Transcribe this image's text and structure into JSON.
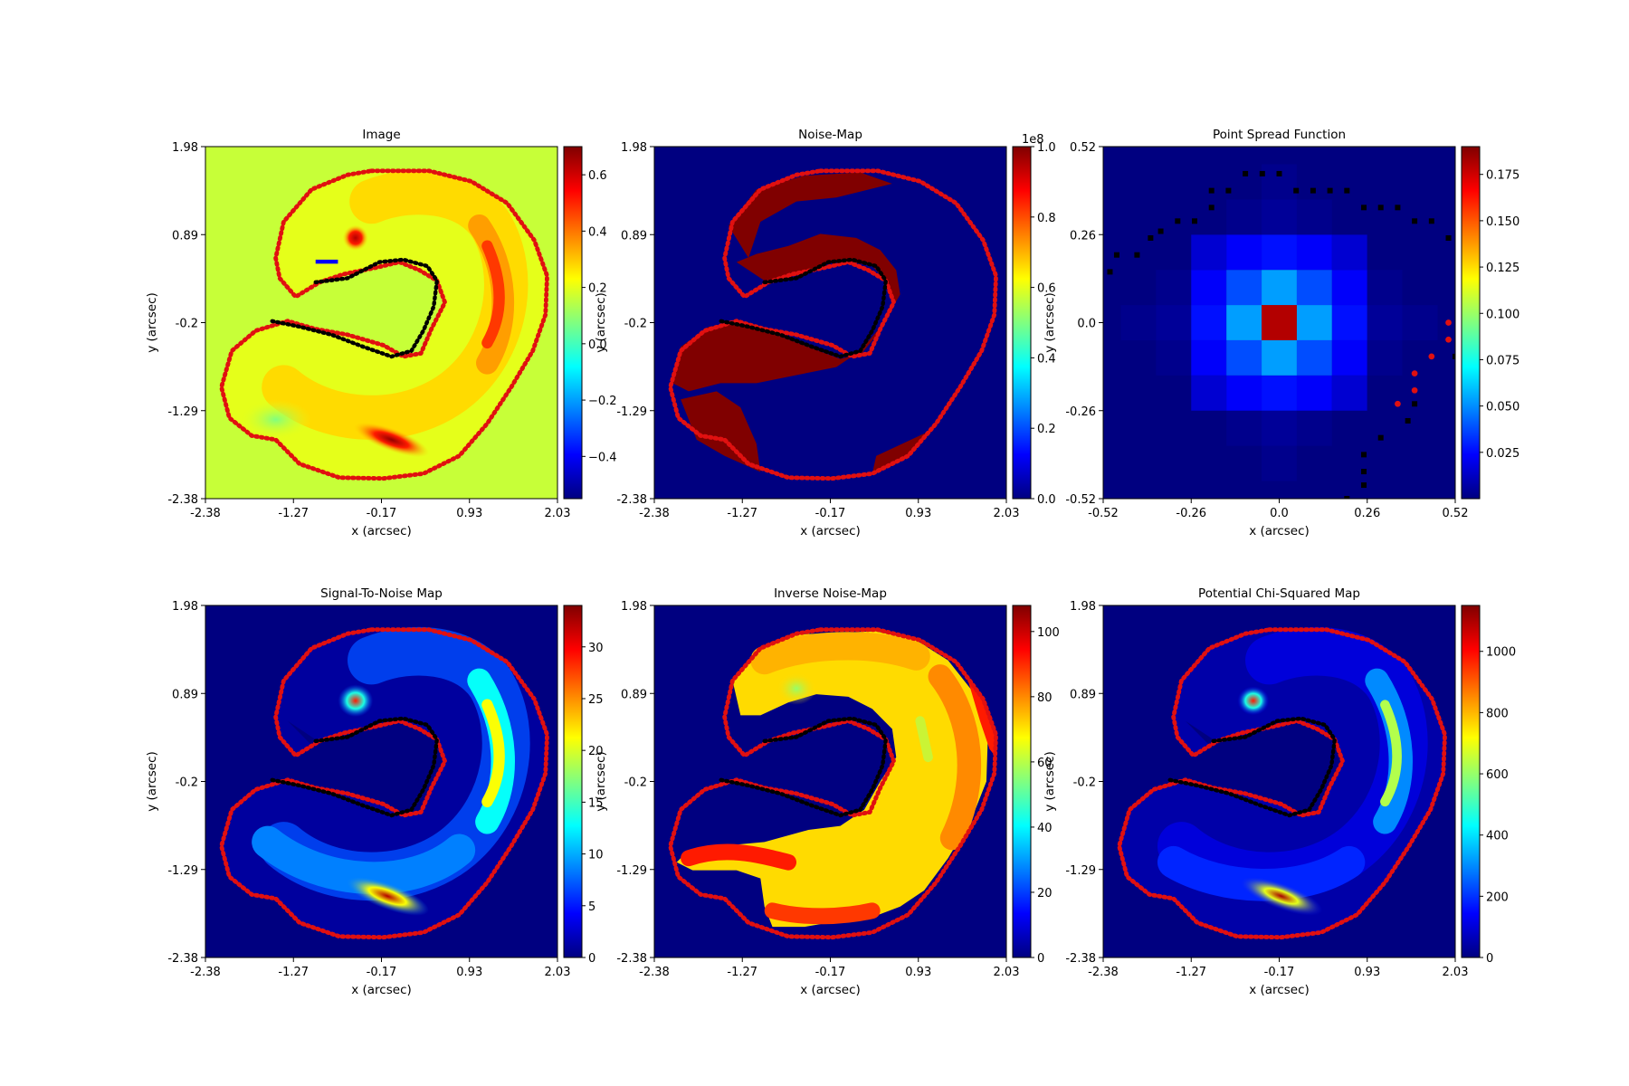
{
  "figure": {
    "panels": [
      {
        "id": "image",
        "title": "Image",
        "xlabel": "x (arcsec)",
        "ylabel": "y (arcsec)",
        "xticks": [
          "-2.38",
          "-1.27",
          "-0.17",
          "0.93",
          "2.03"
        ],
        "yticks": [
          "1.98",
          "0.89",
          "-0.2",
          "-1.29",
          "-2.38"
        ],
        "colorbar": {
          "ticks": [
            "0.6",
            "0.4",
            "0.2",
            "0.0",
            "−0.2",
            "−0.4"
          ],
          "exponent": ""
        }
      },
      {
        "id": "noise-map",
        "title": "Noise-Map",
        "xlabel": "x (arcsec)",
        "ylabel": "y (arcsec)",
        "xticks": [
          "-2.38",
          "-1.27",
          "-0.17",
          "0.93",
          "2.03"
        ],
        "yticks": [
          "1.98",
          "0.89",
          "-0.2",
          "-1.29",
          "-2.38"
        ],
        "colorbar": {
          "ticks": [
            "1.0",
            "0.8",
            "0.6",
            "0.4",
            "0.2",
            "0.0"
          ],
          "exponent": "1e8"
        }
      },
      {
        "id": "psf",
        "title": "Point Spread Function",
        "xlabel": "x (arcsec)",
        "ylabel": "y (arcsec)",
        "xticks": [
          "-0.52",
          "-0.26",
          "0.0",
          "0.26",
          "0.52"
        ],
        "yticks": [
          "0.52",
          "0.26",
          "0.0",
          "-0.26",
          "-0.52"
        ],
        "colorbar": {
          "ticks": [
            "0.175",
            "0.150",
            "0.125",
            "0.100",
            "0.075",
            "0.050",
            "0.025"
          ],
          "exponent": ""
        }
      },
      {
        "id": "signal-to-noise",
        "title": "Signal-To-Noise Map",
        "xlabel": "x (arcsec)",
        "ylabel": "y (arcsec)",
        "xticks": [
          "-2.38",
          "-1.27",
          "-0.17",
          "0.93",
          "2.03"
        ],
        "yticks": [
          "1.98",
          "0.89",
          "-0.2",
          "-1.29",
          "-2.38"
        ],
        "colorbar": {
          "ticks": [
            "30",
            "25",
            "20",
            "15",
            "10",
            "5",
            "0"
          ],
          "exponent": ""
        }
      },
      {
        "id": "inverse-noise-map",
        "title": "Inverse Noise-Map",
        "xlabel": "x (arcsec)",
        "ylabel": "y (arcsec)",
        "xticks": [
          "-2.38",
          "-1.27",
          "-0.17",
          "0.93",
          "2.03"
        ],
        "yticks": [
          "1.98",
          "0.89",
          "-0.2",
          "-1.29",
          "-2.38"
        ],
        "colorbar": {
          "ticks": [
            "100",
            "80",
            "60",
            "40",
            "20",
            "0"
          ],
          "exponent": ""
        }
      },
      {
        "id": "potential-chi-squared",
        "title": "Potential Chi-Squared Map",
        "xlabel": "x (arcsec)",
        "ylabel": "y (arcsec)",
        "xticks": [
          "-2.38",
          "-1.27",
          "-0.17",
          "0.93",
          "2.03"
        ],
        "yticks": [
          "1.98",
          "0.89",
          "-0.2",
          "-1.29",
          "-2.38"
        ],
        "colorbar": {
          "ticks": [
            "1000",
            "800",
            "600",
            "400",
            "200",
            "0"
          ],
          "exponent": ""
        }
      }
    ]
  },
  "chart_data": [
    {
      "type": "heatmap",
      "title": "Image",
      "xlabel": "x (arcsec)",
      "ylabel": "y (arcsec)",
      "xlim": [
        -2.38,
        2.03
      ],
      "ylim": [
        -2.38,
        1.98
      ],
      "colormap": "jet",
      "color_range": [
        -0.55,
        0.7
      ],
      "colorbar_ticks": [
        0.6,
        0.4,
        0.2,
        0.0,
        -0.2,
        -0.4
      ],
      "features": [
        "arc-shaped lensed source",
        "bright knot near (-0.5, 0.8)",
        "bright arc near (-0.1, -1.65)",
        "elongated arc near (1.3, 0.1)"
      ],
      "overlays": [
        {
          "name": "outer mask border",
          "color": "#e01010"
        },
        {
          "name": "inner mask border",
          "color": "#000000"
        }
      ]
    },
    {
      "type": "heatmap",
      "title": "Noise-Map",
      "xlabel": "x (arcsec)",
      "ylabel": "y (arcsec)",
      "xlim": [
        -2.38,
        2.03
      ],
      "ylim": [
        -2.38,
        1.98
      ],
      "colormap": "jet",
      "color_range": [
        0,
        100000000.0
      ],
      "colorbar_ticks": [
        1.0,
        0.8,
        0.6,
        0.4,
        0.2,
        0.0
      ],
      "colorbar_exponent": "1e8",
      "values_note": "outside-mask pixels at maximum noise (1e8)",
      "overlays": [
        {
          "name": "outer mask border",
          "color": "#e01010"
        },
        {
          "name": "inner mask border",
          "color": "#000000"
        }
      ]
    },
    {
      "type": "heatmap",
      "title": "Point Spread Function",
      "xlabel": "x (arcsec)",
      "ylabel": "y (arcsec)",
      "xlim": [
        -0.52,
        0.52
      ],
      "ylim": [
        -0.52,
        0.52
      ],
      "colormap": "jet",
      "color_range": [
        0.0,
        0.19
      ],
      "colorbar_ticks": [
        0.175,
        0.15,
        0.125,
        0.1,
        0.075,
        0.05,
        0.025
      ],
      "peak": {
        "x": 0.0,
        "y": 0.0,
        "value": 0.19
      }
    },
    {
      "type": "heatmap",
      "title": "Signal-To-Noise Map",
      "xlabel": "x (arcsec)",
      "ylabel": "y (arcsec)",
      "xlim": [
        -2.38,
        2.03
      ],
      "ylim": [
        -2.38,
        1.98
      ],
      "colormap": "jet",
      "color_range": [
        0,
        34
      ],
      "colorbar_ticks": [
        30,
        25,
        20,
        15,
        10,
        5,
        0
      ],
      "overlays": [
        {
          "name": "outer mask border",
          "color": "#e01010"
        },
        {
          "name": "inner mask border",
          "color": "#000000"
        }
      ]
    },
    {
      "type": "heatmap",
      "title": "Inverse Noise-Map",
      "xlabel": "x (arcsec)",
      "ylabel": "y (arcsec)",
      "xlim": [
        -2.38,
        2.03
      ],
      "ylim": [
        -2.38,
        1.98
      ],
      "colormap": "jet",
      "color_range": [
        0,
        108
      ],
      "colorbar_ticks": [
        100,
        80,
        60,
        40,
        20,
        0
      ],
      "overlays": [
        {
          "name": "outer mask border",
          "color": "#e01010"
        },
        {
          "name": "inner mask border",
          "color": "#000000"
        }
      ]
    },
    {
      "type": "heatmap",
      "title": "Potential Chi-Squared Map",
      "xlabel": "x (arcsec)",
      "ylabel": "y (arcsec)",
      "xlim": [
        -2.38,
        2.03
      ],
      "ylim": [
        -2.38,
        1.98
      ],
      "colormap": "jet",
      "color_range": [
        0,
        1150
      ],
      "colorbar_ticks": [
        1000,
        800,
        600,
        400,
        200,
        0
      ],
      "overlays": [
        {
          "name": "outer mask border",
          "color": "#e01010"
        },
        {
          "name": "inner mask border",
          "color": "#000000"
        }
      ]
    }
  ]
}
